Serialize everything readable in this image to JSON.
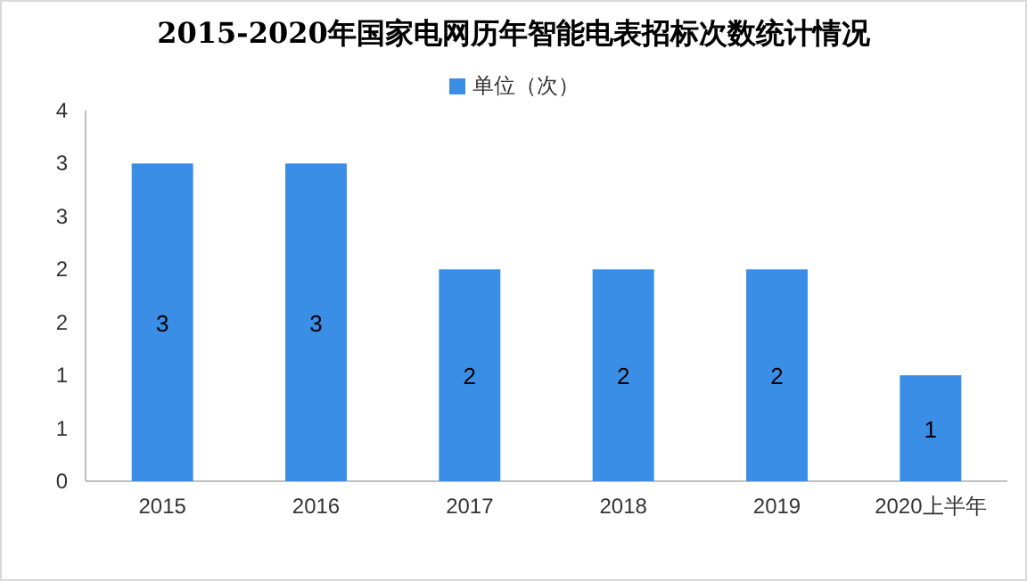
{
  "chart_data": {
    "type": "bar",
    "title": "2015-2020年国家电网历年智能电表招标次数统计情况",
    "categories": [
      "2015",
      "2016",
      "2017",
      "2018",
      "2019",
      "2020上半年"
    ],
    "series": [
      {
        "name": "单位（次）",
        "color": "#3a8ee6",
        "values": [
          3,
          3,
          2,
          2,
          2,
          1
        ]
      }
    ],
    "ylim": [
      0,
      3.5
    ],
    "yticks": [
      0,
      {
        "value": 0.5,
        "label": "1"
      },
      1,
      {
        "value": 1.5,
        "label": "2"
      },
      2,
      {
        "value": 2.5,
        "label": "3"
      },
      3,
      {
        "value": 3.5,
        "label": "4"
      }
    ],
    "data_labels": true,
    "legend": "top"
  }
}
